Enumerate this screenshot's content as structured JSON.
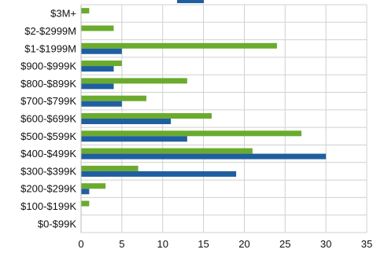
{
  "chart_data": {
    "type": "bar",
    "orientation": "horizontal",
    "categories": [
      "$3M+",
      "$2-$2999M",
      "$1-$1999M",
      "$900-$999K",
      "$800-$899K",
      "$700-$799K",
      "$600-$699K",
      "$500-$599K",
      "$400-$499K",
      "$300-$399K",
      "$200-$299K",
      "$100-$199K",
      "$0-$99K"
    ],
    "series": [
      {
        "color": "#6aab2e",
        "values": [
          1,
          4,
          24,
          5,
          13,
          8,
          16,
          27,
          21,
          7,
          3,
          1,
          0
        ]
      },
      {
        "color": "#1f5fa0",
        "values": [
          0,
          0,
          5,
          4,
          4,
          5,
          11,
          13,
          30,
          19,
          1,
          0,
          0
        ]
      }
    ],
    "xlim": [
      0,
      35
    ],
    "xticks": [
      0,
      5,
      10,
      15,
      20,
      25,
      30,
      35
    ],
    "grid": true,
    "legend": "none",
    "title": "",
    "xlabel": "",
    "ylabel": ""
  }
}
